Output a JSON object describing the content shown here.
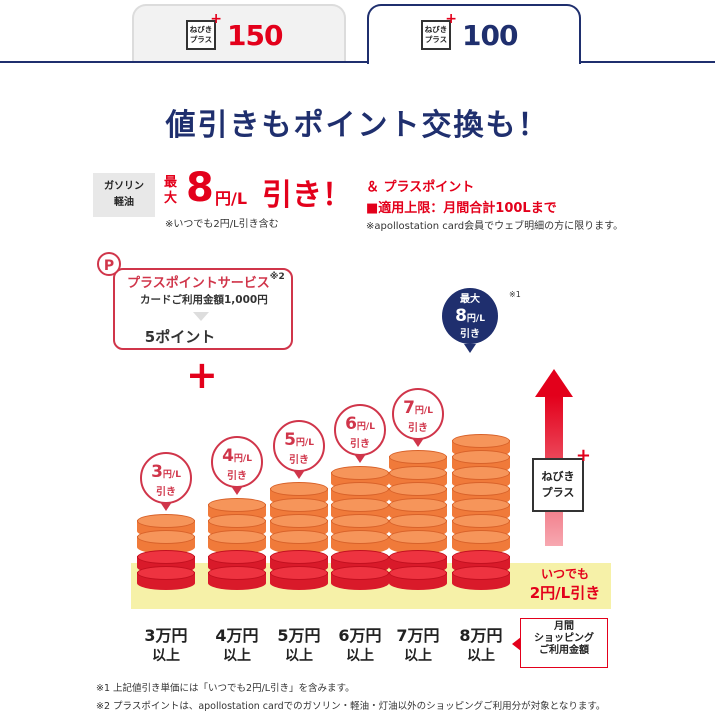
{
  "tabs": [
    {
      "badge_line1": "ねびき",
      "badge_line2": "プラス",
      "value": "150"
    },
    {
      "badge_line1": "ねびき",
      "badge_line2": "プラス",
      "value": "100"
    }
  ],
  "headline": "値引きもポイント交換も！",
  "info": {
    "fuel_line1": "ガソリン",
    "fuel_line2": "軽油",
    "max_label": "最大",
    "discount_value": "8",
    "discount_unit": "円/L",
    "discount_suffix": "引き！",
    "note": "※いつでも2円/L引き含む",
    "plus_point": "＆ プラスポイント",
    "limit": "■適用上限：月間合計100Lまで",
    "limit_note": "※apollostation card会員でウェブ明細の方に限ります。"
  },
  "point_service": {
    "icon": "P",
    "title": "プラスポイントサービス",
    "title_note": "※2",
    "condition": "カードご利用金額1,000円",
    "result": "5ポイント"
  },
  "chart": {
    "tiers": [
      {
        "discount": "3",
        "unit": "円/L",
        "suffix": "引き",
        "amount": "3万円",
        "amount_suffix": "以上",
        "stack_total": 4
      },
      {
        "discount": "4",
        "unit": "円/L",
        "suffix": "引き",
        "amount": "4万円",
        "amount_suffix": "以上",
        "stack_total": 5
      },
      {
        "discount": "5",
        "unit": "円/L",
        "suffix": "引き",
        "amount": "5万円",
        "amount_suffix": "以上",
        "stack_total": 6
      },
      {
        "discount": "6",
        "unit": "円/L",
        "suffix": "引き",
        "amount": "6万円",
        "amount_suffix": "以上",
        "stack_total": 7
      },
      {
        "discount": "7",
        "unit": "円/L",
        "suffix": "引き",
        "amount": "7万円",
        "amount_suffix": "以上",
        "stack_total": 8
      },
      {
        "discount": "8",
        "unit": "円/L",
        "suffix": "引き",
        "amount": "8万円",
        "amount_suffix": "以上",
        "stack_total": 9
      }
    ],
    "max_label": "最大",
    "max_note": "※1",
    "nebiki_line1": "ねびき",
    "nebiki_line2": "プラス",
    "always_line1": "いつでも",
    "always_line2": "2円/L引き",
    "monthly_line1": "月間",
    "monthly_line2": "ショッピング",
    "monthly_line3": "ご利用金額",
    "colors": {
      "red": "#e3001b",
      "orange": "#f07a3a",
      "navy": "#1f2f6e",
      "band": "#f6f1a8"
    }
  },
  "footnotes": [
    "※1 上記値引き単価には「いつでも2円/L引き」を含みます。",
    "※2 プラスポイントは、apollostation cardでのガソリン・軽油・灯油以外のショッピングご利用分が対象となります。"
  ]
}
